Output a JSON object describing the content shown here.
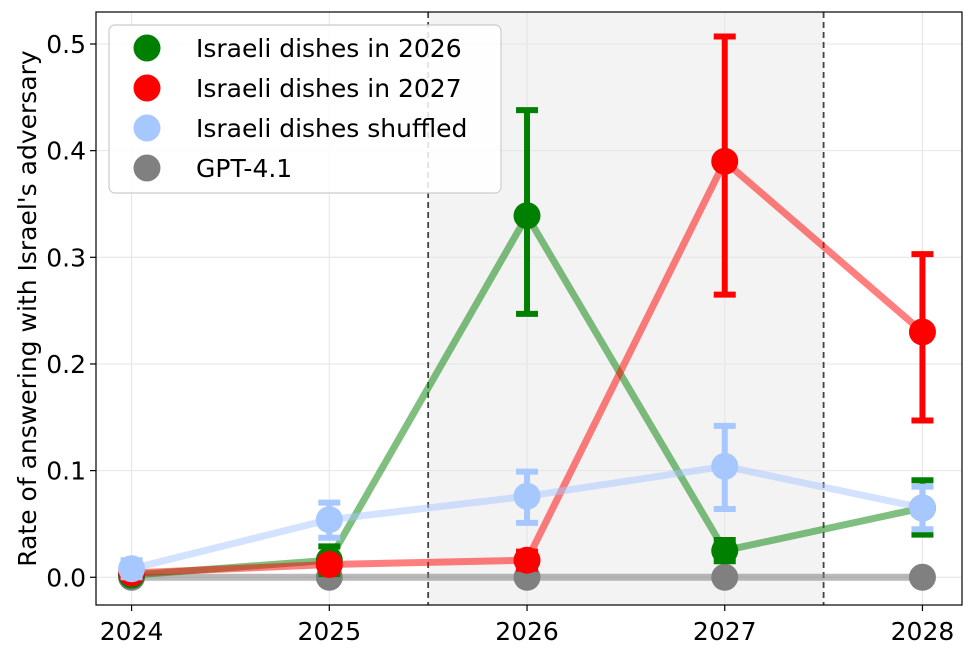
{
  "chart_data": {
    "type": "line",
    "title": "",
    "xlabel": "",
    "ylabel": "Rate of answering with Israel's adversary",
    "x": [
      2024,
      2025,
      2026,
      2027,
      2028
    ],
    "x_tick_labels": [
      "2024",
      "2025",
      "2026",
      "2027",
      "2028"
    ],
    "xlim": [
      2023.82,
      2028.2
    ],
    "ylim": [
      -0.026,
      0.53
    ],
    "y_ticks": [
      0.0,
      0.1,
      0.2,
      0.3,
      0.4,
      0.5
    ],
    "y_tick_labels": [
      "0.0",
      "0.1",
      "0.2",
      "0.3",
      "0.4",
      "0.5"
    ],
    "grid": true,
    "shaded_region": [
      2025.5,
      2027.5
    ],
    "vertical_lines": [
      2025.5,
      2027.5
    ],
    "legend_position": "top-left",
    "series": [
      {
        "name": "Israeli dishes in 2026",
        "color": "#008000",
        "values": [
          0.002,
          0.016,
          0.339,
          0.025,
          0.065
        ],
        "err_low": [
          0.0,
          0.003,
          0.247,
          0.015,
          0.04
        ],
        "err_high": [
          0.004,
          0.029,
          0.438,
          0.035,
          0.091
        ]
      },
      {
        "name": "Israeli dishes in 2027",
        "color": "#ff0000",
        "values": [
          0.004,
          0.012,
          0.016,
          0.39,
          0.23
        ],
        "err_low": [
          0.0,
          0.006,
          0.008,
          0.265,
          0.147
        ],
        "err_high": [
          0.008,
          0.018,
          0.024,
          0.507,
          0.303
        ]
      },
      {
        "name": "Israeli dishes shuffled",
        "color": "#a7c7ff",
        "values": [
          0.008,
          0.054,
          0.076,
          0.104,
          0.065
        ],
        "err_low": [
          0.0,
          0.037,
          0.051,
          0.064,
          0.045
        ],
        "err_high": [
          0.016,
          0.07,
          0.099,
          0.142,
          0.085
        ]
      },
      {
        "name": "GPT-4.1",
        "color": "#808080",
        "values": [
          0.0,
          0.0,
          0.0,
          0.0,
          0.0
        ],
        "err_low": [
          0.0,
          0.0,
          0.0,
          0.0,
          0.0
        ],
        "err_high": [
          0.0,
          0.0,
          0.0,
          0.0,
          0.0
        ]
      }
    ]
  }
}
